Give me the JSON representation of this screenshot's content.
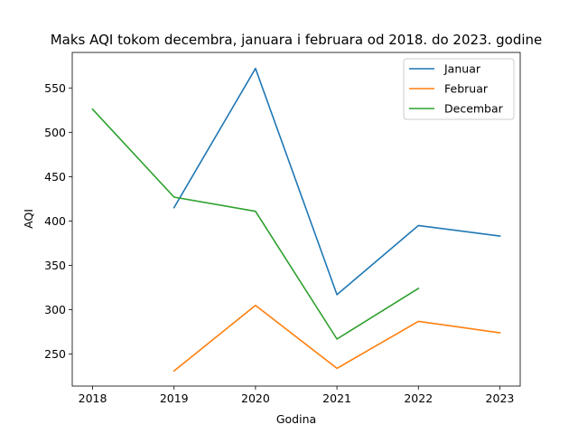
{
  "chart_data": {
    "type": "line",
    "title": "Maks AQI tokom decembra, januara i februara od 2018. do 2023. godine",
    "xlabel": "Godina",
    "ylabel": "AQI",
    "xlim": [
      2017.75,
      2023.25
    ],
    "ylim": [
      214,
      590
    ],
    "xticks": [
      2018,
      2019,
      2020,
      2021,
      2022,
      2023
    ],
    "yticks": [
      250,
      300,
      350,
      400,
      450,
      500,
      550
    ],
    "grid": false,
    "legend_position": "top-right",
    "series": [
      {
        "name": "Januar",
        "color": "#1f77b4",
        "points": [
          [
            2019,
            415
          ],
          [
            2020,
            572
          ],
          [
            2021,
            317
          ],
          [
            2022,
            395
          ],
          [
            2023,
            383
          ]
        ]
      },
      {
        "name": "Februar",
        "color": "#ff7f0e",
        "points": [
          [
            2019,
            231
          ],
          [
            2020,
            305
          ],
          [
            2021,
            234
          ],
          [
            2022,
            287
          ],
          [
            2023,
            274
          ]
        ]
      },
      {
        "name": "Decembar",
        "color": "#2ca02c",
        "points": [
          [
            2018,
            526
          ],
          [
            2019,
            427
          ],
          [
            2020,
            411
          ],
          [
            2021,
            267
          ],
          [
            2022,
            324
          ]
        ]
      }
    ]
  }
}
